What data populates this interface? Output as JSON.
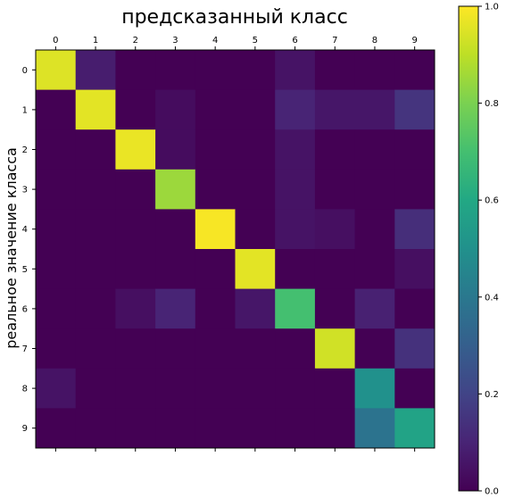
{
  "chart_data": {
    "type": "heatmap",
    "title": "предсказанный класс",
    "ylabel": "реальное значение класса",
    "xlabel": "",
    "x_categories": [
      "0",
      "1",
      "2",
      "3",
      "4",
      "5",
      "6",
      "7",
      "8",
      "9"
    ],
    "y_categories": [
      "0",
      "1",
      "2",
      "3",
      "4",
      "5",
      "6",
      "7",
      "8",
      "9"
    ],
    "x_tick_position": "top",
    "colormap": "viridis",
    "value_range": [
      0.0,
      1.0
    ],
    "colorbar_ticks": [
      "0.0",
      "0.2",
      "0.4",
      "0.6",
      "0.8",
      "1.0"
    ],
    "grid": false,
    "legend": "colorbar-right",
    "values": [
      [
        0.95,
        0.08,
        0.0,
        0.0,
        0.0,
        0.0,
        0.05,
        0.0,
        0.0,
        0.0
      ],
      [
        0.0,
        0.96,
        0.0,
        0.03,
        0.0,
        0.0,
        0.1,
        0.06,
        0.06,
        0.15
      ],
      [
        0.0,
        0.0,
        0.97,
        0.03,
        0.0,
        0.0,
        0.05,
        0.0,
        0.0,
        0.0
      ],
      [
        0.0,
        0.0,
        0.0,
        0.85,
        0.0,
        0.0,
        0.05,
        0.0,
        0.0,
        0.0
      ],
      [
        0.0,
        0.0,
        0.0,
        0.0,
        0.99,
        0.0,
        0.05,
        0.04,
        0.0,
        0.13
      ],
      [
        0.0,
        0.0,
        0.0,
        0.0,
        0.0,
        0.96,
        0.0,
        0.0,
        0.0,
        0.04
      ],
      [
        0.0,
        0.0,
        0.04,
        0.1,
        0.0,
        0.06,
        0.7,
        0.0,
        0.09,
        0.0
      ],
      [
        0.0,
        0.0,
        0.0,
        0.0,
        0.0,
        0.0,
        0.0,
        0.93,
        0.0,
        0.14
      ],
      [
        0.05,
        0.0,
        0.0,
        0.0,
        0.0,
        0.0,
        0.0,
        0.0,
        0.5,
        0.0
      ],
      [
        0.0,
        0.0,
        0.0,
        0.0,
        0.0,
        0.0,
        0.0,
        0.0,
        0.38,
        0.58
      ]
    ]
  }
}
